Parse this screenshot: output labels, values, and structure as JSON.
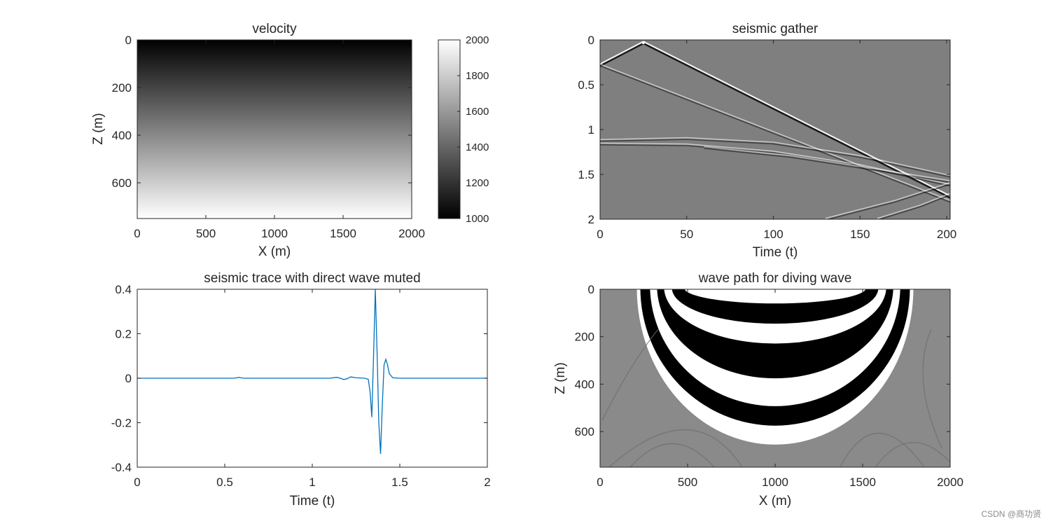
{
  "watermark": "CSDN @商功贤",
  "chart_data": [
    {
      "id": "velocity",
      "type": "heatmap",
      "title": "velocity",
      "xlabel": "X (m)",
      "ylabel": "Z (m)",
      "xlim": [
        0,
        2000
      ],
      "ylim": [
        0,
        750
      ],
      "xticks": [
        0,
        500,
        1000,
        1500,
        2000
      ],
      "yticks": [
        0,
        200,
        400,
        600
      ],
      "colormap": "gray",
      "field": "linear velocity increase with depth",
      "colorbar": {
        "range": [
          1000,
          2000
        ],
        "ticks": [
          1000,
          1200,
          1400,
          1600,
          1800,
          2000
        ]
      },
      "value_top": 1000,
      "value_bottom": 2000
    },
    {
      "id": "seismic-gather",
      "type": "heatmap",
      "title": "seismic gather",
      "xlabel": "Time (t)",
      "ylabel": "",
      "xlim": [
        0,
        202
      ],
      "ylim": [
        0,
        2
      ],
      "xticks": [
        0,
        50,
        100,
        150,
        200
      ],
      "yticks": [
        0,
        0.5,
        1,
        1.5,
        2
      ],
      "yticklabels": [
        "0",
        "0.5",
        "1",
        "1.5",
        "2"
      ],
      "colormap": "gray",
      "source_x": 25,
      "source_t": 0.03,
      "events": [
        {
          "name": "direct-left",
          "points": [
            [
              25,
              0.03
            ],
            [
              0,
              0.28
            ]
          ]
        },
        {
          "name": "direct-right",
          "points": [
            [
              25,
              0.03
            ],
            [
              202,
              1.75
            ]
          ]
        },
        {
          "name": "diving-wave",
          "points": [
            [
              0,
              0.28
            ],
            [
              202,
              1.8
            ]
          ]
        },
        {
          "name": "reflection-1",
          "points": [
            [
              0,
              1.12
            ],
            [
              50,
              1.1
            ],
            [
              100,
              1.15
            ],
            [
              150,
              1.3
            ],
            [
              202,
              1.52
            ]
          ]
        },
        {
          "name": "reflection-2",
          "points": [
            [
              0,
              1.16
            ],
            [
              50,
              1.17
            ],
            [
              100,
              1.25
            ],
            [
              150,
              1.4
            ],
            [
              202,
              1.62
            ]
          ]
        },
        {
          "name": "reflection-3",
          "points": [
            [
              60,
              1.2
            ],
            [
              110,
              1.3
            ],
            [
              160,
              1.45
            ],
            [
              202,
              1.58
            ]
          ]
        },
        {
          "name": "late-1",
          "points": [
            [
              130,
              2.0
            ],
            [
              170,
              1.8
            ],
            [
              202,
              1.6
            ]
          ]
        },
        {
          "name": "late-2",
          "points": [
            [
              160,
              2.0
            ],
            [
              185,
              1.85
            ],
            [
              202,
              1.72
            ]
          ]
        }
      ]
    },
    {
      "id": "seismic-trace",
      "type": "line",
      "title": "seismic trace with direct wave muted",
      "xlabel": "Time (t)",
      "ylabel": "",
      "xlim": [
        0,
        2
      ],
      "ylim": [
        -0.4,
        0.4
      ],
      "xticks": [
        0,
        0.5,
        1,
        1.5,
        2
      ],
      "xticklabels": [
        "0",
        "0.5",
        "1",
        "1.5",
        "2"
      ],
      "yticks": [
        -0.4,
        -0.2,
        0,
        0.2,
        0.4
      ],
      "yticklabels": [
        "-0.4",
        "-0.2",
        "0",
        "0.2",
        "0.4"
      ],
      "color": "#0072BD",
      "series": [
        {
          "name": "trace",
          "x": [
            0,
            0.55,
            0.57,
            0.58,
            0.59,
            0.61,
            0.65,
            1.1,
            1.14,
            1.16,
            1.18,
            1.2,
            1.22,
            1.25,
            1.3,
            1.32,
            1.33,
            1.34,
            1.35,
            1.36,
            1.37,
            1.38,
            1.39,
            1.4,
            1.41,
            1.42,
            1.43,
            1.44,
            1.46,
            1.5,
            2.0
          ],
          "y": [
            0,
            0,
            0.002,
            0.004,
            0.002,
            0,
            0,
            0,
            0.004,
            0,
            -0.006,
            -0.002,
            0.006,
            0.002,
            0,
            -0.005,
            -0.06,
            -0.175,
            0.1,
            0.4,
            0.12,
            -0.2,
            -0.34,
            -0.12,
            0.06,
            0.085,
            0.06,
            0.02,
            0.002,
            0,
            0
          ]
        }
      ]
    },
    {
      "id": "wave-path",
      "type": "heatmap",
      "title": "wave path for diving wave",
      "xlabel": "X (m)",
      "ylabel": "Z (m)",
      "xlim": [
        0,
        2000
      ],
      "ylim": [
        0,
        750
      ],
      "xticks": [
        0,
        500,
        1000,
        1500,
        2000
      ],
      "yticks": [
        0,
        200,
        400,
        600
      ],
      "colormap": "gray",
      "path_x_range": [
        210,
        1790
      ],
      "bands": [
        {
          "name": "outer-white",
          "color": "#ffffff",
          "half_width": 790,
          "depth": 655
        },
        {
          "name": "black-1",
          "color": "#000000",
          "half_width": 770,
          "depth": 575
        },
        {
          "name": "white-1",
          "color": "#ffffff",
          "half_width": 715,
          "depth": 505
        },
        {
          "name": "black-2",
          "color": "#000000",
          "half_width": 675,
          "depth": 385
        },
        {
          "name": "white-2",
          "color": "#ffffff",
          "half_width": 635,
          "depth": 235
        },
        {
          "name": "black-3",
          "color": "#000000",
          "half_width": 590,
          "depth": 145
        },
        {
          "name": "white-3",
          "color": "#ffffff",
          "half_width": 520,
          "depth": 60
        }
      ]
    }
  ]
}
